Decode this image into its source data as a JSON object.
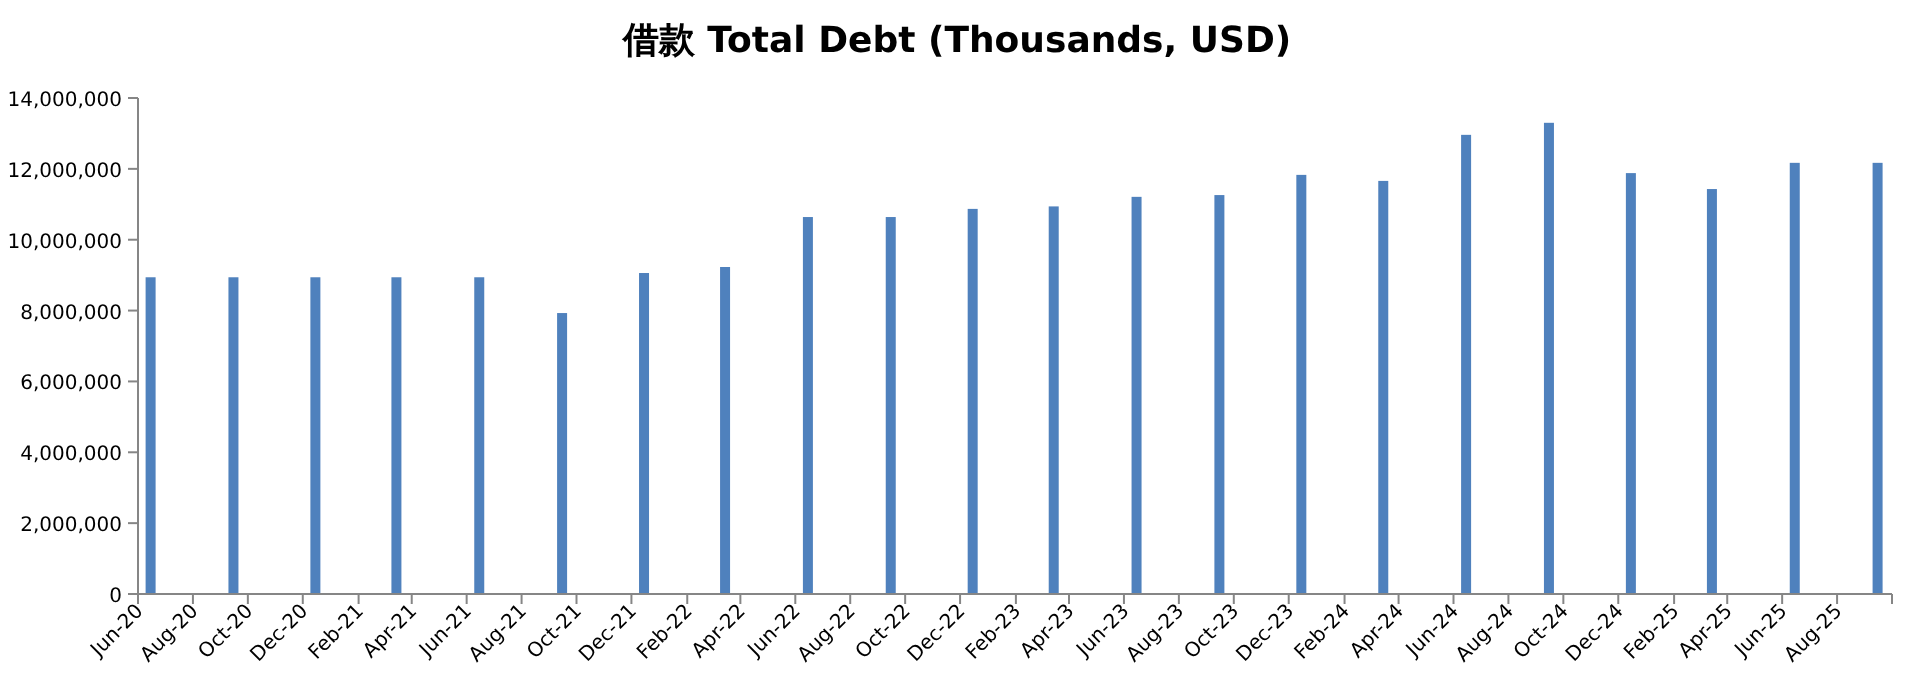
{
  "chart_data": {
    "type": "bar",
    "title": "借款 Total Debt (Thousands, USD)",
    "x": [
      "2020-06-15",
      "2020-09-15",
      "2020-12-15",
      "2021-03-15",
      "2021-06-15",
      "2021-09-15",
      "2021-12-15",
      "2022-03-15",
      "2022-06-15",
      "2022-09-15",
      "2022-12-15",
      "2023-03-15",
      "2023-06-15",
      "2023-09-15",
      "2023-12-15",
      "2024-03-15",
      "2024-06-15",
      "2024-09-15",
      "2024-12-15",
      "2025-03-15",
      "2025-06-15",
      "2025-09-15"
    ],
    "series": [
      {
        "color": "#4f81bd",
        "values": [
          8940000,
          8940000,
          8940000,
          8940000,
          8940000,
          7930000,
          9060000,
          9230000,
          10640000,
          10640000,
          10870000,
          10940000,
          11210000,
          11260000,
          11830000,
          11660000,
          12960000,
          13300000,
          11880000,
          11430000,
          12170000,
          12170000
        ]
      }
    ],
    "xlim": [
      "2020-06",
      "2025-10"
    ],
    "xticks": [
      {
        "value": "2020-06",
        "label": "Jun-20"
      },
      {
        "value": "2020-08",
        "label": "Aug-20"
      },
      {
        "value": "2020-10",
        "label": "Oct-20"
      },
      {
        "value": "2020-12",
        "label": "Dec-20"
      },
      {
        "value": "2021-02",
        "label": "Feb-21"
      },
      {
        "value": "2021-04",
        "label": "Apr-21"
      },
      {
        "value": "2021-06",
        "label": "Jun-21"
      },
      {
        "value": "2021-08",
        "label": "Aug-21"
      },
      {
        "value": "2021-10",
        "label": "Oct-21"
      },
      {
        "value": "2021-12",
        "label": "Dec-21"
      },
      {
        "value": "2022-02",
        "label": "Feb-22"
      },
      {
        "value": "2022-04",
        "label": "Apr-22"
      },
      {
        "value": "2022-06",
        "label": "Jun-22"
      },
      {
        "value": "2022-08",
        "label": "Aug-22"
      },
      {
        "value": "2022-10",
        "label": "Oct-22"
      },
      {
        "value": "2022-12",
        "label": "Dec-22"
      },
      {
        "value": "2023-02",
        "label": "Feb-23"
      },
      {
        "value": "2023-04",
        "label": "Apr-23"
      },
      {
        "value": "2023-06",
        "label": "Jun-23"
      },
      {
        "value": "2023-08",
        "label": "Aug-23"
      },
      {
        "value": "2023-10",
        "label": "Oct-23"
      },
      {
        "value": "2023-12",
        "label": "Dec-23"
      },
      {
        "value": "2024-02",
        "label": "Feb-24"
      },
      {
        "value": "2024-04",
        "label": "Apr-24"
      },
      {
        "value": "2024-06",
        "label": "Jun-24"
      },
      {
        "value": "2024-08",
        "label": "Aug-24"
      },
      {
        "value": "2024-10",
        "label": "Oct-24"
      },
      {
        "value": "2024-12",
        "label": "Dec-24"
      },
      {
        "value": "2025-02",
        "label": "Feb-25"
      },
      {
        "value": "2025-04",
        "label": "Apr-25"
      },
      {
        "value": "2025-06",
        "label": "Jun-25"
      },
      {
        "value": "2025-08",
        "label": "Aug-25"
      },
      {
        "value": "2025-10",
        "label": null
      }
    ],
    "ylim": [
      0,
      14000000
    ],
    "yticks": [
      {
        "value": 0,
        "label": "0"
      },
      {
        "value": 2000000,
        "label": "2,000,000"
      },
      {
        "value": 4000000,
        "label": "4,000,000"
      },
      {
        "value": 6000000,
        "label": "6,000,000"
      },
      {
        "value": 8000000,
        "label": "8,000,000"
      },
      {
        "value": 10000000,
        "label": "10,000,000"
      },
      {
        "value": 12000000,
        "label": "12,000,000"
      },
      {
        "value": 14000000,
        "label": "14,000,000"
      }
    ],
    "grid": false
  }
}
